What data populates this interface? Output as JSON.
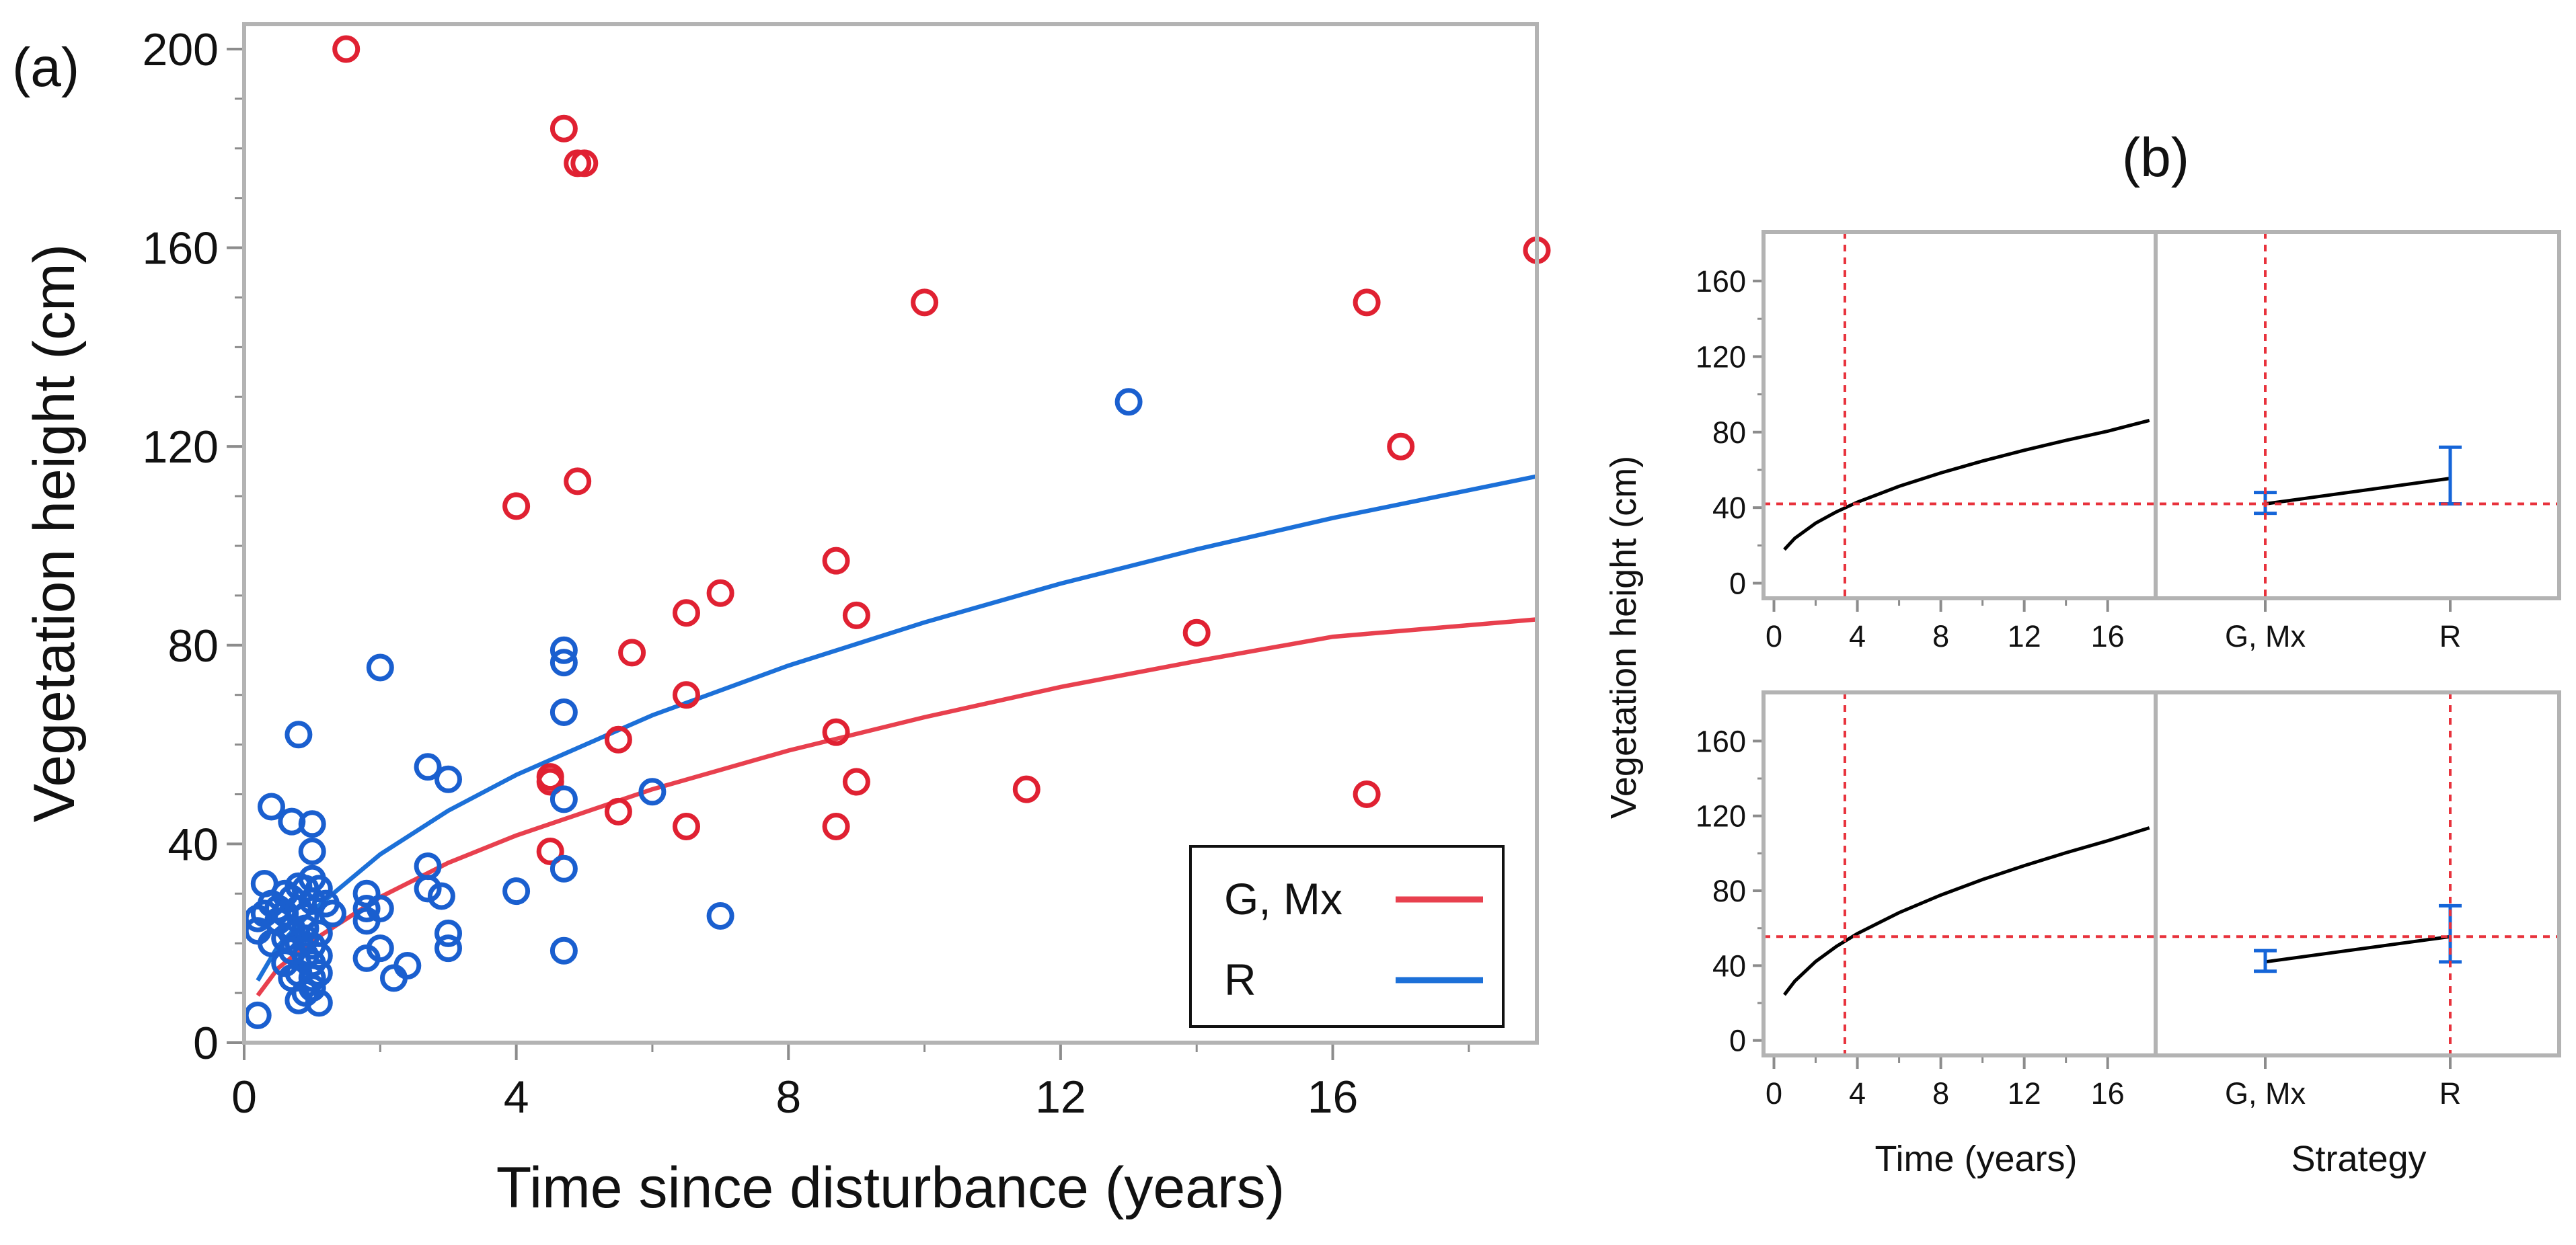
{
  "colors": {
    "g_mx": "#e02132",
    "r": "#1a5fcf",
    "g_mx_line": "#e8404e",
    "r_line": "#1c70d8",
    "reference": "#e8323c",
    "profile": "#000000",
    "error_bar": "#1565d8"
  },
  "chart_data": [
    {
      "panel": "(a)",
      "type": "scatter",
      "title": "",
      "xlabel": "Time since disturbance (years)",
      "ylabel": "Vegetation height (cm)",
      "xlim": [
        0,
        19
      ],
      "ylim": [
        0,
        205
      ],
      "xticks": [
        0,
        4,
        8,
        12,
        16
      ],
      "yticks": [
        0,
        40,
        80,
        120,
        160,
        200
      ],
      "legend_position": "bottom-right",
      "series": [
        {
          "name": "G, Mx",
          "color": "#e02132",
          "points": [
            [
              1.5,
              200
            ],
            [
              4.7,
              184
            ],
            [
              4.9,
              177
            ],
            [
              5.0,
              177
            ],
            [
              19,
              159.5
            ],
            [
              10,
              149
            ],
            [
              16.5,
              149
            ],
            [
              17,
              120
            ],
            [
              4.9,
              113
            ],
            [
              4.0,
              108
            ],
            [
              8.7,
              97
            ],
            [
              7,
              90.5
            ],
            [
              6.5,
              86.5
            ],
            [
              9,
              86
            ],
            [
              14,
              82.5
            ],
            [
              5.7,
              78.5
            ],
            [
              6.5,
              70
            ],
            [
              8.7,
              62.5
            ],
            [
              5.5,
              61
            ],
            [
              4.5,
              53.5
            ],
            [
              4.5,
              52.5
            ],
            [
              9,
              52.5
            ],
            [
              11.5,
              51
            ],
            [
              16.5,
              50
            ],
            [
              5.5,
              46.5
            ],
            [
              6.5,
              43.5
            ],
            [
              8.7,
              43.5
            ],
            [
              4.5,
              38.5
            ]
          ],
          "fit_curve": {
            "x": [
              0.2,
              0.5,
              1,
              2,
              3,
              4,
              6,
              8,
              10,
              12,
              14,
              16,
              19
            ],
            "y": [
              9.5,
              15,
              20.5,
              29.3,
              36.2,
              41.7,
              51,
              58.8,
              65.5,
              71.6,
              76.8,
              81.7,
              85.2
            ]
          }
        },
        {
          "name": "R",
          "color": "#1a5fcf",
          "points": [
            [
              13,
              129
            ],
            [
              4.7,
              79
            ],
            [
              4.7,
              76.5
            ],
            [
              2,
              75.5
            ],
            [
              4.7,
              66.5
            ],
            [
              0.8,
              62
            ],
            [
              2.7,
              55.5
            ],
            [
              3,
              53
            ],
            [
              6,
              50.5
            ],
            [
              4.7,
              49
            ],
            [
              0.4,
              47.5
            ],
            [
              0.7,
              44.5
            ],
            [
              1,
              44
            ],
            [
              1,
              38.5
            ],
            [
              2.7,
              35.5
            ],
            [
              4.7,
              35
            ],
            [
              1,
              33
            ],
            [
              0.3,
              32
            ],
            [
              0.8,
              31.5
            ],
            [
              0.9,
              31
            ],
            [
              1.1,
              31
            ],
            [
              2.7,
              31
            ],
            [
              4.0,
              30.5
            ],
            [
              0.6,
              30
            ],
            [
              1.8,
              30
            ],
            [
              2.9,
              29.5
            ],
            [
              0.7,
              29
            ],
            [
              1.0,
              28.5
            ],
            [
              0.4,
              28
            ],
            [
              1.2,
              28
            ],
            [
              0.5,
              27
            ],
            [
              0.8,
              27
            ],
            [
              1.8,
              27
            ],
            [
              2.0,
              27
            ],
            [
              0.3,
              26
            ],
            [
              0.6,
              26
            ],
            [
              1.3,
              26
            ],
            [
              0.9,
              25.5
            ],
            [
              7,
              25.5
            ],
            [
              0.2,
              25
            ],
            [
              0.5,
              24.5
            ],
            [
              1.8,
              24.5
            ],
            [
              0.7,
              23
            ],
            [
              0.9,
              23
            ],
            [
              0.2,
              22.5
            ],
            [
              1.1,
              22
            ],
            [
              3.0,
              22
            ],
            [
              0.6,
              21
            ],
            [
              0.9,
              21
            ],
            [
              0.4,
              20
            ],
            [
              0.8,
              20
            ],
            [
              1.0,
              19.5
            ],
            [
              2.0,
              19
            ],
            [
              3.0,
              19
            ],
            [
              0.7,
              18.5
            ],
            [
              4.7,
              18.5
            ],
            [
              0.9,
              17.5
            ],
            [
              1.1,
              17.5
            ],
            [
              1.8,
              17
            ],
            [
              0.6,
              16
            ],
            [
              1.0,
              16
            ],
            [
              2.4,
              15.5
            ],
            [
              0.8,
              14
            ],
            [
              1.1,
              14
            ],
            [
              0.7,
              13
            ],
            [
              1.0,
              13
            ],
            [
              2.2,
              13
            ],
            [
              1.0,
              11
            ],
            [
              0.9,
              10
            ],
            [
              0.8,
              8.5
            ],
            [
              1.1,
              8
            ],
            [
              0.2,
              5.5
            ]
          ],
          "fit_curve": {
            "x": [
              0.2,
              0.5,
              1,
              2,
              3,
              4,
              6,
              8,
              10,
              12,
              14,
              16,
              19
            ],
            "y": [
              12.5,
              19.5,
              26.5,
              37.9,
              46.7,
              53.9,
              65.9,
              75.9,
              84.6,
              92.4,
              99.3,
              105.6,
              114
            ]
          }
        }
      ]
    },
    {
      "panel": "(b)",
      "type": "line",
      "title": "",
      "ylabel": "Vegetation height (cm)",
      "x_time_label": "Time (years)",
      "x_strategy_label": "Strategy",
      "time_ticks": [
        0,
        4,
        8,
        12,
        16
      ],
      "strategy_categories": [
        "G, Mx",
        "R"
      ],
      "yticks": [
        0,
        40,
        80,
        120,
        160
      ],
      "ylim": [
        -8,
        186
      ],
      "time_xlim": [
        -0.5,
        18.3
      ],
      "rows": [
        {
          "reference_time": 3.4,
          "reference_height": 42,
          "selected_strategy": "G, Mx",
          "time_profile": {
            "x": [
              0.5,
              1,
              2,
              3,
              4,
              6,
              8,
              10,
              12,
              14,
              16,
              18
            ],
            "y": [
              17.8,
              23.8,
              31.8,
              37.8,
              42.9,
              51.3,
              58.4,
              64.7,
              70.4,
              75.6,
              80.5,
              86.2
            ]
          },
          "strategy_profile": {
            "categories": [
              "G, Mx",
              "R"
            ],
            "values": [
              42,
              55.5
            ],
            "lower": [
              37,
              42
            ],
            "upper": [
              48,
              72
            ]
          }
        },
        {
          "reference_time": 3.4,
          "reference_height": 55.5,
          "selected_strategy": "R",
          "time_profile": {
            "x": [
              0.5,
              1,
              2,
              3,
              4,
              6,
              8,
              10,
              12,
              14,
              16,
              18
            ],
            "y": [
              24.4,
              31.7,
              42.2,
              50.3,
              57.1,
              68.3,
              77.7,
              86,
              93.4,
              100.3,
              106.7,
              113.6
            ]
          },
          "strategy_profile": {
            "categories": [
              "G, Mx",
              "R"
            ],
            "values": [
              42,
              55.5
            ],
            "lower": [
              37,
              42
            ],
            "upper": [
              48,
              72
            ]
          }
        }
      ]
    }
  ]
}
